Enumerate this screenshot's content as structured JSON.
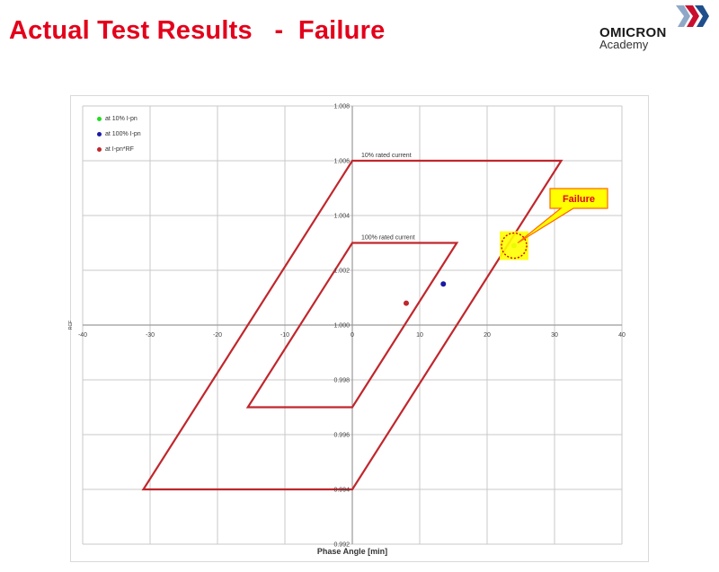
{
  "slide": {
    "title": "Actual Test Results   -  Failure",
    "logo": {
      "name": "OMICRON",
      "sub": "Academy"
    }
  },
  "colors": {
    "title": "#e3001b",
    "envelope": "#c0272d",
    "callout_fill": "#ffff00",
    "callout_border": "#ff6600"
  },
  "chart_data": {
    "type": "scatter",
    "xlabel": "Phase Angle  [min]",
    "ylabel": "RCF",
    "xlim": [
      -40,
      40
    ],
    "ylim": [
      0.992,
      1.008
    ],
    "x_ticks": [
      -40,
      -30,
      -20,
      -10,
      0,
      10,
      20,
      30,
      40
    ],
    "y_ticks": [
      0.992,
      0.994,
      0.996,
      0.998,
      1.0,
      1.002,
      1.004,
      1.006,
      1.008
    ],
    "x_tick_labels": [
      "-40",
      "-30",
      "-20",
      "-10",
      "0",
      "10",
      "20",
      "30",
      "40"
    ],
    "y_tick_labels": [
      "0.992",
      "0.994",
      "0.996",
      "0.998",
      "1.000",
      "1.002",
      "1.004",
      "1.006",
      "1.008"
    ],
    "grid": true,
    "legend_position": "top-left",
    "series": [
      {
        "name": "at 10% I-pn",
        "color": "#22dd22",
        "points": [
          [
            24,
            1.0029
          ]
        ]
      },
      {
        "name": "at 100% I-pn",
        "color": "#1a1aa6",
        "points": [
          [
            13.5,
            1.0015
          ]
        ]
      },
      {
        "name": "at I-pn*RF",
        "color": "#c0272d",
        "points": [
          [
            8,
            1.0008
          ]
        ]
      }
    ],
    "envelopes": [
      {
        "label": "10% rated current",
        "points": [
          [
            -31,
            0.994
          ],
          [
            0,
            0.994
          ],
          [
            31,
            1.006
          ],
          [
            0,
            1.006
          ]
        ]
      },
      {
        "label": "100% rated current",
        "points": [
          [
            -15.5,
            0.997
          ],
          [
            0,
            0.997
          ],
          [
            15.5,
            1.003
          ],
          [
            0,
            1.003
          ]
        ]
      }
    ],
    "annotations": [
      {
        "text": "Failure",
        "target": [
          24,
          1.0029
        ]
      }
    ]
  }
}
